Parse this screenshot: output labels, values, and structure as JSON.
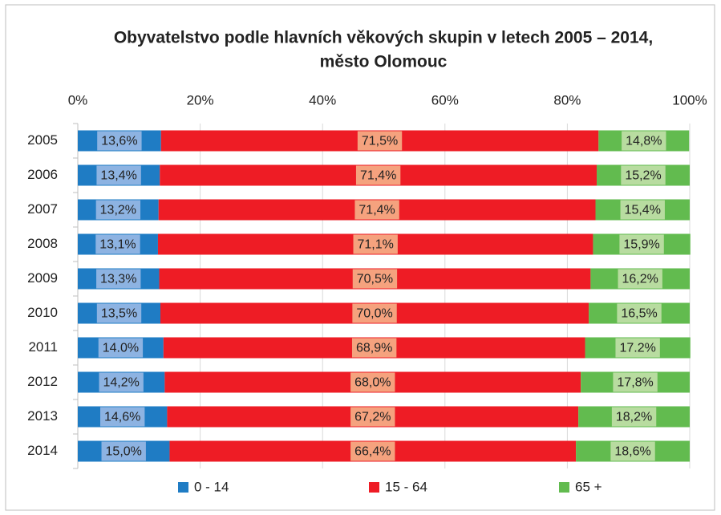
{
  "chart_data": {
    "type": "stacked-bar-horizontal",
    "title": [
      "Obyvatelstvo podle hlavních věkových skupin v letech 2005 – 2014,",
      "město Olomouc"
    ],
    "categories": [
      "2005",
      "2006",
      "2007",
      "2008",
      "2009",
      "2010",
      "2011",
      "2012",
      "2013",
      "2014"
    ],
    "series": [
      {
        "name": "0 - 14",
        "color": "#1f7cc4",
        "label_color": "#8db3e2",
        "values": [
          13.6,
          13.4,
          13.2,
          13.1,
          13.3,
          13.5,
          14.0,
          14.2,
          14.6,
          15.0
        ],
        "value_labels": [
          "13,6%",
          "13,4%",
          "13,2%",
          "13,1%",
          "13,3%",
          "13,5%",
          "14.0%",
          "14,2%",
          "14,6%",
          "15,0%"
        ]
      },
      {
        "name": "15 - 64",
        "color": "#ee1c25",
        "label_color": "#f5a27e",
        "values": [
          71.5,
          71.4,
          71.4,
          71.1,
          70.5,
          70.0,
          68.9,
          68.0,
          67.2,
          66.4
        ],
        "value_labels": [
          "71,5%",
          "71,4%",
          "71,4%",
          "71,1%",
          "70,5%",
          "70,0%",
          "68,9%",
          "68,0%",
          "67,2%",
          "66,4%"
        ]
      },
      {
        "name": "65 +",
        "color": "#62bb4f",
        "label_color": "#b8dca0",
        "values": [
          14.8,
          15.2,
          15.4,
          15.9,
          16.2,
          16.5,
          17.2,
          17.8,
          18.2,
          18.6
        ],
        "value_labels": [
          "14,8%",
          "15,2%",
          "15,4%",
          "15,9%",
          "16,2%",
          "16,5%",
          "17.2%",
          "17,8%",
          "18,2%",
          "18,6%"
        ]
      }
    ],
    "xlim": [
      0,
      100
    ],
    "xticks": [
      {
        "value": 0,
        "label": "0%"
      },
      {
        "value": 20,
        "label": "20%"
      },
      {
        "value": 40,
        "label": "40%"
      },
      {
        "value": 60,
        "label": "60%"
      },
      {
        "value": 80,
        "label": "80%"
      },
      {
        "value": 100,
        "label": "100%"
      }
    ],
    "grid": true,
    "legend": "bottom"
  }
}
